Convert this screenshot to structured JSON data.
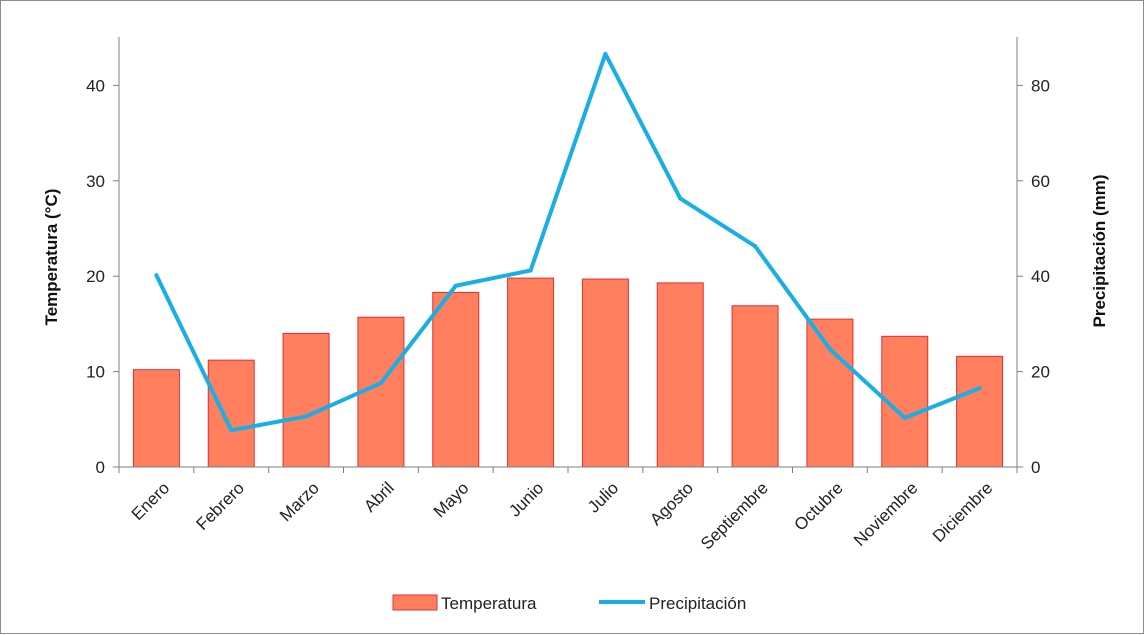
{
  "chart_data": {
    "type": "bar+line",
    "categories": [
      "Enero",
      "Febrero",
      "Marzo",
      "Abril",
      "Mayo",
      "Junio",
      "Julio",
      "Agosto",
      "Septiembre",
      "Octubre",
      "Noviembre",
      "Diciembre"
    ],
    "series": [
      {
        "name": "Temperatura",
        "type": "bar",
        "axis": "left",
        "color": "#ff7f5f",
        "border_color": "#e03030",
        "values": [
          10.2,
          11.2,
          14.0,
          15.7,
          18.3,
          19.8,
          19.7,
          19.3,
          16.9,
          15.5,
          13.7,
          11.6
        ]
      },
      {
        "name": "Precipitación",
        "type": "line",
        "axis": "right",
        "color": "#1aaee6",
        "values": [
          40.2,
          7.7,
          10.6,
          17.6,
          38.0,
          41.2,
          86.6,
          56.3,
          46.3,
          24.7,
          10.3,
          16.5
        ]
      }
    ],
    "ylabel": "Temperatura (°C)",
    "y2label": "Precipitación (mm)",
    "ylim": [
      0,
      45
    ],
    "y2lim": [
      0,
      90
    ],
    "yticks": [
      "0",
      "10",
      "20",
      "30",
      "40"
    ],
    "y2ticks": [
      "0",
      "20",
      "40",
      "60",
      "80"
    ],
    "grid": false,
    "legend_position": "bottom-center"
  }
}
